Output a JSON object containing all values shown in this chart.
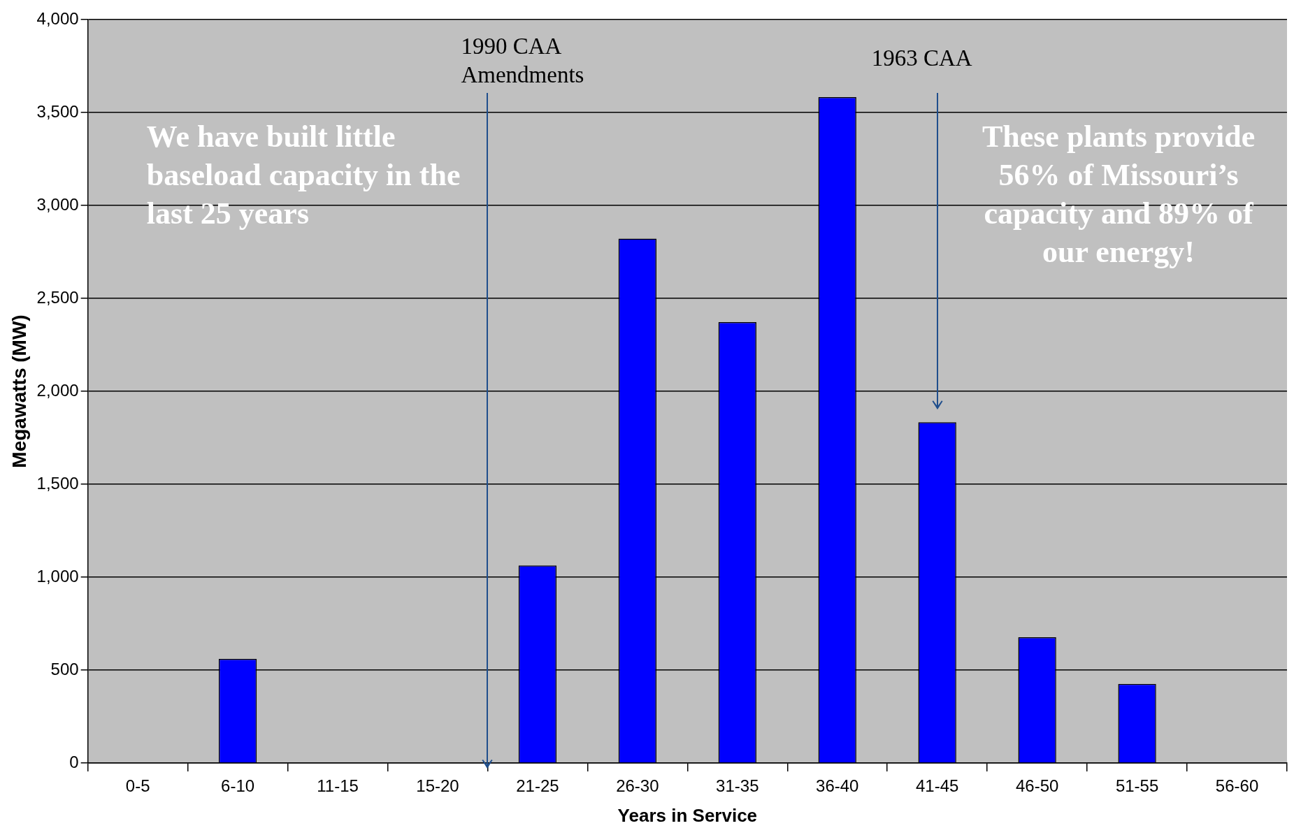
{
  "chart_data": {
    "type": "bar",
    "xlabel": "Years in Service",
    "ylabel": "Megawatts (MW)",
    "categories": [
      "0-5",
      "6-10",
      "11-15",
      "15-20",
      "21-25",
      "26-30",
      "31-35",
      "36-40",
      "41-45",
      "46-50",
      "51-55",
      "56-60"
    ],
    "values": [
      0,
      560,
      0,
      0,
      1063,
      2821,
      2372,
      3583,
      1834,
      677,
      426,
      0
    ],
    "color": "#0000ff",
    "ylim": [
      0,
      4000
    ],
    "yticks": [
      {
        "value": 0,
        "label": "0"
      },
      {
        "value": 500,
        "label": "500"
      },
      {
        "value": 1000,
        "label": "1,000"
      },
      {
        "value": 1500,
        "label": "1,500"
      },
      {
        "value": 2000,
        "label": "2,000"
      },
      {
        "value": 2500,
        "label": "2,500"
      },
      {
        "value": 3000,
        "label": "3,000"
      },
      {
        "value": 3500,
        "label": "3,500"
      },
      {
        "value": 4000,
        "label": "4,000"
      }
    ],
    "grid": "y",
    "legend": false,
    "annotations": [
      "1990 CAA Amendments",
      "1963 CAA",
      "We have built little baseload capacity in the last 25 years",
      "These plants provide 56% of Missouri’s capacity and 89% of our energy!"
    ]
  }
}
